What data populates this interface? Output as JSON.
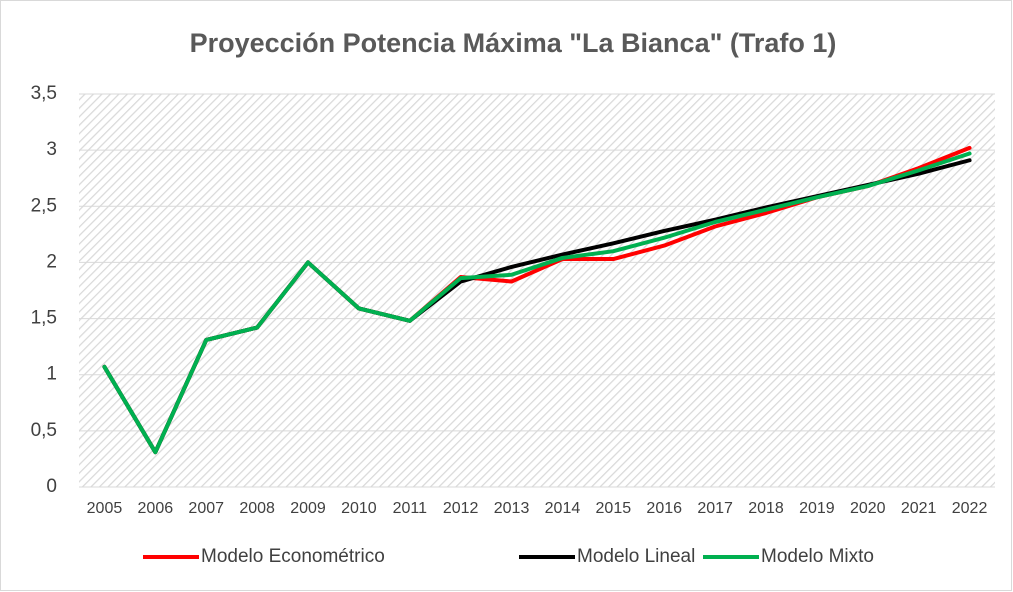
{
  "chart_data": {
    "type": "line",
    "title": "Proyección Potencia Máxima \"La Bianca\" (Trafo 1)",
    "categories": [
      "2005",
      "2006",
      "2007",
      "2008",
      "2009",
      "2010",
      "2011",
      "2012",
      "2013",
      "2014",
      "2015",
      "2016",
      "2017",
      "2018",
      "2019",
      "2020",
      "2021",
      "2022"
    ],
    "series": [
      {
        "name": "Modelo Econométrico",
        "color": "#ff0000",
        "values": [
          1.07,
          0.31,
          1.31,
          1.42,
          2.0,
          1.59,
          1.48,
          1.87,
          1.83,
          2.03,
          2.03,
          2.15,
          2.32,
          2.44,
          2.58,
          2.68,
          2.84,
          3.02
        ]
      },
      {
        "name": "Modelo Lineal",
        "color": "#000000",
        "values": [
          1.07,
          0.31,
          1.31,
          1.42,
          2.0,
          1.59,
          1.48,
          1.83,
          1.96,
          2.07,
          2.17,
          2.28,
          2.38,
          2.49,
          2.59,
          2.69,
          2.79,
          2.91
        ]
      },
      {
        "name": "Modelo Mixto",
        "color": "#00b050",
        "values": [
          1.07,
          0.31,
          1.31,
          1.42,
          2.0,
          1.59,
          1.48,
          1.86,
          1.89,
          2.04,
          2.1,
          2.22,
          2.36,
          2.47,
          2.58,
          2.68,
          2.82,
          2.97
        ]
      }
    ],
    "ylim": [
      0,
      3.5
    ],
    "yticks": [
      0,
      {
        "value": 0.5,
        "label": "0,5"
      },
      1,
      {
        "value": 1.5,
        "label": "1,5"
      },
      2,
      {
        "value": 2.5,
        "label": "2,5"
      },
      3,
      {
        "value": 3.5,
        "label": "3,5"
      }
    ],
    "grid": true,
    "legend": "bottom"
  }
}
